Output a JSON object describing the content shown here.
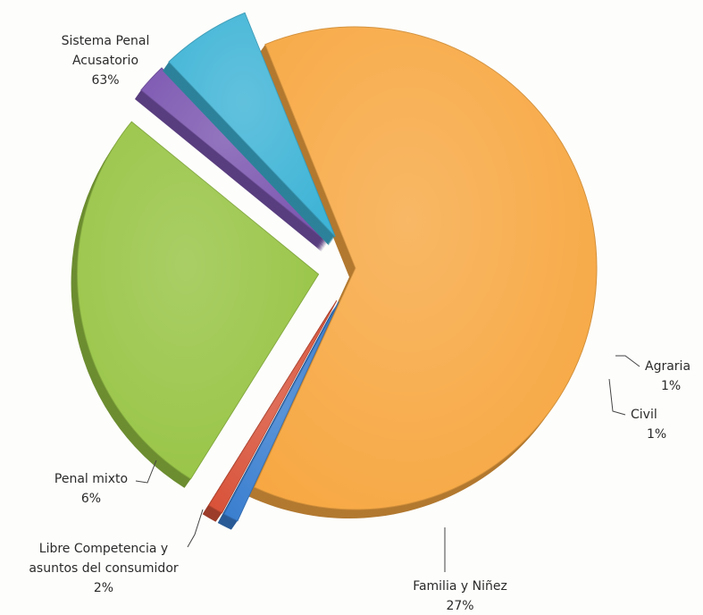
{
  "chart_data": {
    "type": "pie",
    "categories": [
      "Sistema Penal Acusatorio",
      "Agraria",
      "Civil",
      "Familia y Niñez",
      "Libre Competencia y asuntos del consumidor",
      "Penal mixto"
    ],
    "values": [
      63,
      1,
      1,
      27,
      2,
      6
    ],
    "colors": [
      "#f7a843",
      "#3b7fd0",
      "#d9533a",
      "#97c444",
      "#7b56b0",
      "#3fb4d6"
    ],
    "slices": [
      {
        "label_lines": [
          "Sistema Penal",
          "Acusatorio"
        ],
        "percent_label": "63%",
        "value": 63,
        "color": "#f7a843",
        "label_align": "middle"
      },
      {
        "label_lines": [
          "Agraria"
        ],
        "percent_label": "1%",
        "value": 1,
        "color": "#3b7fd0",
        "label_align": "start"
      },
      {
        "label_lines": [
          "Civil"
        ],
        "percent_label": "1%",
        "value": 1,
        "color": "#d9533a",
        "label_align": "start"
      },
      {
        "label_lines": [
          "Familia y Niñez"
        ],
        "percent_label": "27%",
        "value": 27,
        "color": "#97c444",
        "label_align": "middle"
      },
      {
        "label_lines": [
          "Libre Competencia y",
          "asuntos del consumidor"
        ],
        "percent_label": "2%",
        "value": 2,
        "color": "#7b56b0",
        "label_align": "middle"
      },
      {
        "label_lines": [
          "Penal mixto"
        ],
        "percent_label": "6%",
        "value": 6,
        "color": "#3fb4d6",
        "label_align": "middle"
      }
    ],
    "title": "",
    "legend": "none",
    "style": "exploded-3d"
  }
}
